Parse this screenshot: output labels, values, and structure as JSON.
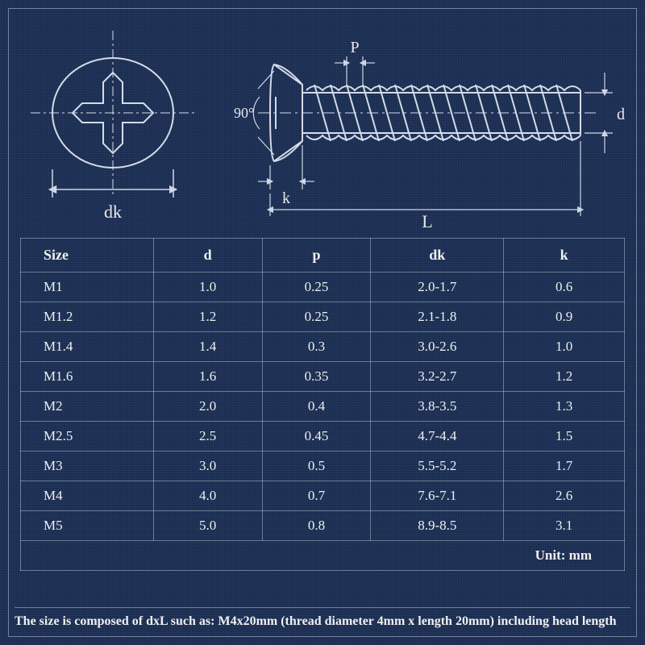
{
  "diagram": {
    "angle_label": "90°",
    "labels": {
      "dk": "dk",
      "k": "k",
      "L": "L",
      "P": "P",
      "d": "d"
    },
    "colors": {
      "line": "#d5dbe8",
      "dim": "#cfd6e6",
      "bg": "#1a2d52"
    }
  },
  "table": {
    "headers": [
      "Size",
      "d",
      "p",
      "dk",
      "k"
    ],
    "rows": [
      [
        "M1",
        "1.0",
        "0.25",
        "2.0-1.7",
        "0.6"
      ],
      [
        "M1.2",
        "1.2",
        "0.25",
        "2.1-1.8",
        "0.9"
      ],
      [
        "M1.4",
        "1.4",
        "0.3",
        "3.0-2.6",
        "1.0"
      ],
      [
        "M1.6",
        "1.6",
        "0.35",
        "3.2-2.7",
        "1.2"
      ],
      [
        "M2",
        "2.0",
        "0.4",
        "3.8-3.5",
        "1.3"
      ],
      [
        "M2.5",
        "2.5",
        "0.45",
        "4.7-4.4",
        "1.5"
      ],
      [
        "M3",
        "3.0",
        "0.5",
        "5.5-5.2",
        "1.7"
      ],
      [
        "M4",
        "4.0",
        "0.7",
        "7.6-7.1",
        "2.6"
      ],
      [
        "M5",
        "5.0",
        "0.8",
        "8.9-8.5",
        "3.1"
      ]
    ],
    "unit_label": "Unit: mm",
    "col_widths": [
      "22%",
      "18%",
      "18%",
      "22%",
      "20%"
    ]
  },
  "footnote": "The size is composed of dxL such as: M4x20mm (thread diameter 4mm x length 20mm) including head length"
}
